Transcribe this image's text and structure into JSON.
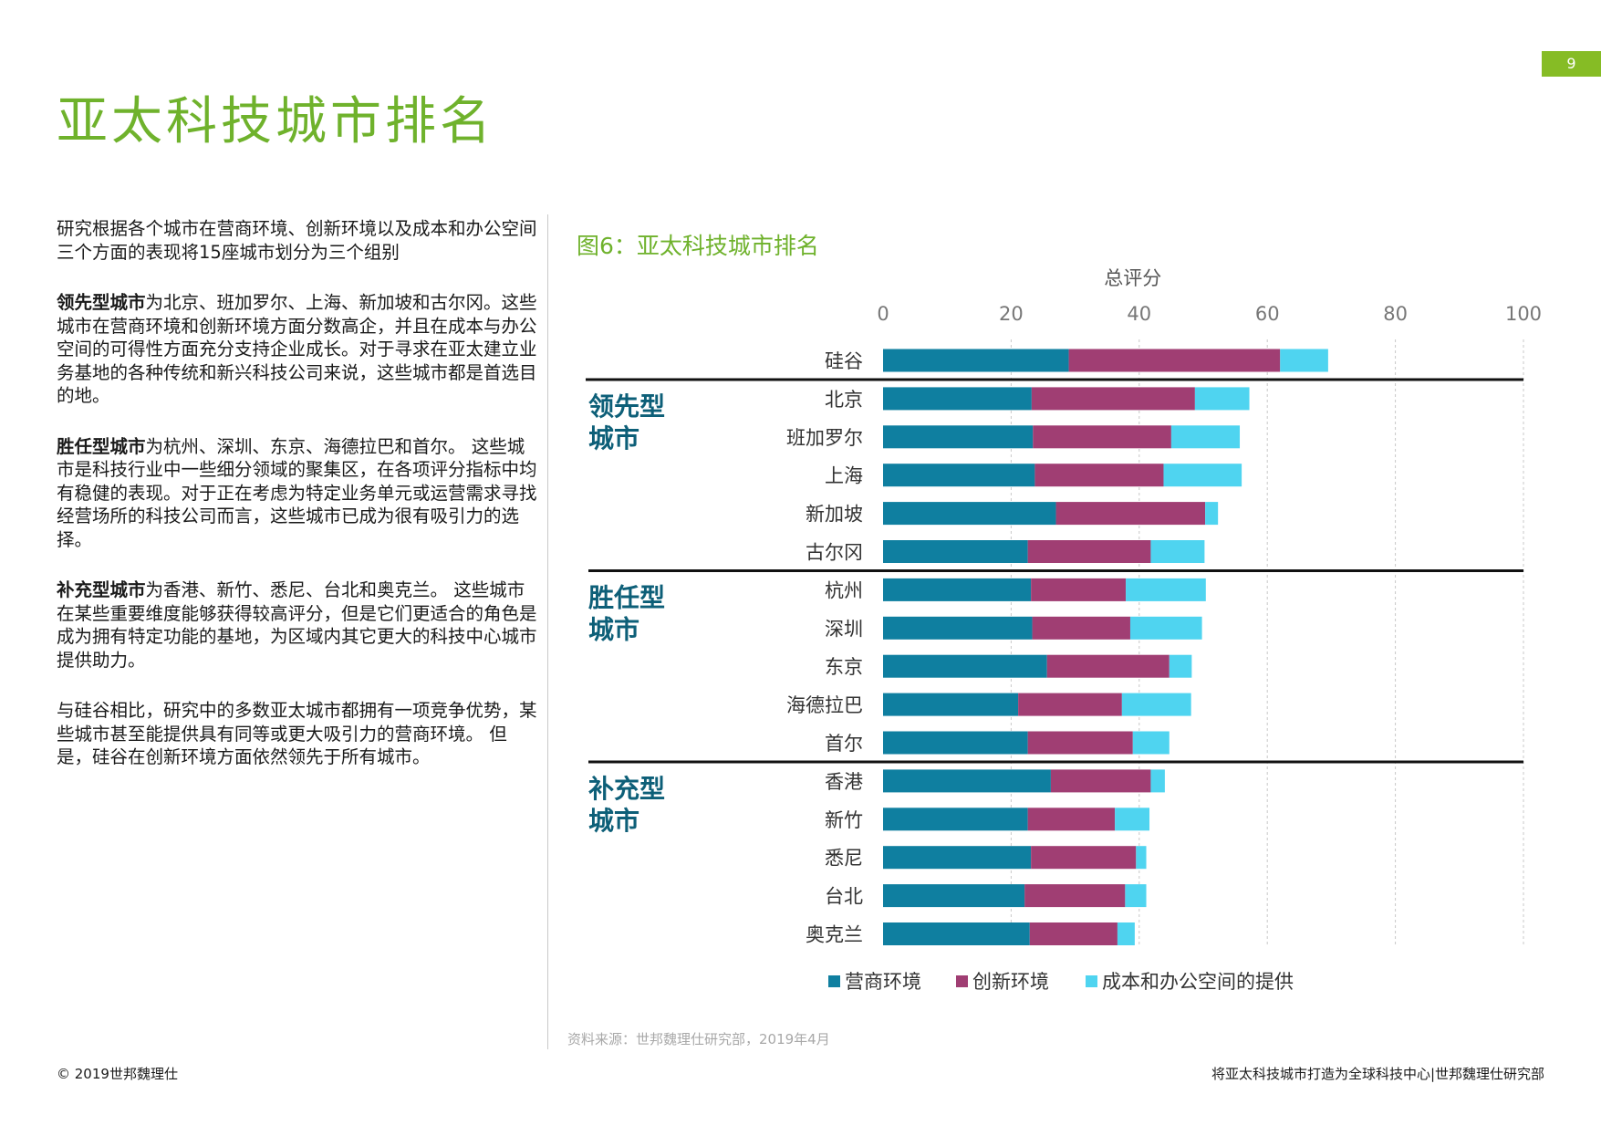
{
  "page": {
    "number": "9",
    "title": "亚太科技城市排名",
    "copyright": "© 2019世邦魏理仕",
    "footer": "将亚太科技城市打造为全球科技中心|世邦魏理仕研究部",
    "source": "资料来源：世邦魏理仕研究部，2019年4月"
  },
  "left": {
    "intro": "研究根据各个城市在营商环境、创新环境以及成本和办公空间三个方面的表现将15座城市划分为三个组别",
    "leaders_term": "领先型城市",
    "leaders_text": "为北京、班加罗尔、上海、新加坡和古尔冈。这些城市在营商环境和创新环境方面分数高企，并且在成本与办公空间的可得性方面充分支持企业成长。对于寻求在亚太建立业务基地的各种传统和新兴科技公司来说，这些城市都是首选目的地。",
    "competent_term": "胜任型城市",
    "competent_text": "为杭州、深圳、东京、海德拉巴和首尔。 这些城市是科技行业中一些细分领域的聚集区，在各项评分指标中均有稳健的表现。对于正在考虑为特定业务单元或运营需求寻找经营场所的科技公司而言，这些城市已成为很有吸引力的选择。",
    "supplement_term": "补充型城市",
    "supplement_text": "为香港、新竹、悉尼、台北和奥克兰。 这些城市在某些重要维度能够获得较高评分，但是它们更适合的角色是成为拥有特定功能的基地，为区域内其它更大的科技中心城市提供助力。",
    "conclusion": "与硅谷相比，研究中的多数亚太城市都拥有一项竞争优势，某些城市甚至能提供具有同等或更大吸引力的营商环境。 但是，硅谷在创新环境方面依然领先于所有城市。"
  },
  "chart_data": {
    "type": "bar",
    "orientation": "horizontal",
    "stacked": true,
    "title": "图6：亚太科技城市排名",
    "xlabel": "总评分",
    "ylabel": "",
    "xlim": [
      0,
      100
    ],
    "ticks": [
      0,
      20,
      40,
      60,
      80,
      100
    ],
    "grid": true,
    "legend_position": "bottom",
    "categories": [
      "硅谷",
      "北京",
      "班加罗尔",
      "上海",
      "新加坡",
      "古尔冈",
      "杭州",
      "深圳",
      "东京",
      "海德拉巴",
      "首尔",
      "香港",
      "新竹",
      "悉尼",
      "台北",
      "奥克兰"
    ],
    "series": [
      {
        "name": "营商环境",
        "color": "#0f7fa0",
        "values": [
          29,
          23.2,
          23.4,
          23.7,
          27,
          22.6,
          23.1,
          23.3,
          25.6,
          21.1,
          22.6,
          26.2,
          22.6,
          23.1,
          22.1,
          22.9
        ]
      },
      {
        "name": "创新环境",
        "color": "#a03e73",
        "values": [
          33,
          25.5,
          21.6,
          20.1,
          23.3,
          19.2,
          14.8,
          15.3,
          19.1,
          16.2,
          16.4,
          15.6,
          13.6,
          16.4,
          15.7,
          13.7
        ]
      },
      {
        "name": "成本和办公空间的提供",
        "color": "#4fd4f0",
        "values": [
          7.5,
          8.5,
          10.7,
          12.2,
          2,
          8.4,
          12.5,
          11.2,
          3.5,
          10.8,
          5.7,
          2.2,
          5.4,
          1.6,
          3.3,
          2.7
        ]
      }
    ],
    "groups": [
      {
        "label_line1": "领先型",
        "label_line2": "城市",
        "start": 1,
        "end": 5
      },
      {
        "label_line1": "胜任型",
        "label_line2": "城市",
        "start": 6,
        "end": 10
      },
      {
        "label_line1": "补充型",
        "label_line2": "城市",
        "start": 11,
        "end": 15
      }
    ]
  }
}
